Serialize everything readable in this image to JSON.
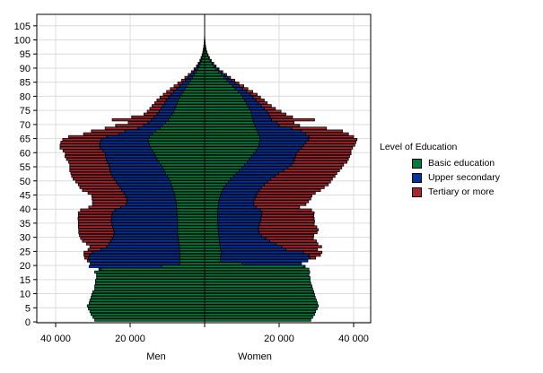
{
  "chart_data": {
    "type": "bar",
    "subtype": "population-pyramid-stacked",
    "title": "",
    "xlabel_left": "Men",
    "xlabel_right": "Women",
    "ylabel": "",
    "x_ticks": [
      "40 000",
      "20 000",
      "",
      "20 000",
      "40 000"
    ],
    "x_tick_values": [
      -40000,
      -20000,
      0,
      20000,
      40000
    ],
    "xlim": [
      -45000,
      45000
    ],
    "y_ticks": [
      0,
      5,
      10,
      15,
      20,
      25,
      30,
      35,
      40,
      45,
      50,
      55,
      60,
      65,
      70,
      75,
      80,
      85,
      90,
      95,
      100,
      105
    ],
    "ylim": [
      0,
      108
    ],
    "grid": true,
    "legend": {
      "title": "Level of Education",
      "position": "right",
      "entries": [
        {
          "name": "Basic education",
          "color": "#007a3d"
        },
        {
          "name": "Upper secondary",
          "color": "#0033a0"
        },
        {
          "name": "Tertiary or more",
          "color": "#a8262e"
        }
      ]
    },
    "ages": [
      0,
      1,
      2,
      3,
      4,
      5,
      6,
      7,
      8,
      9,
      10,
      11,
      12,
      13,
      14,
      15,
      16,
      17,
      18,
      19,
      20,
      21,
      22,
      23,
      24,
      25,
      26,
      27,
      28,
      29,
      30,
      31,
      32,
      33,
      34,
      35,
      36,
      37,
      38,
      39,
      40,
      41,
      42,
      43,
      44,
      45,
      46,
      47,
      48,
      49,
      50,
      51,
      52,
      53,
      54,
      55,
      56,
      57,
      58,
      59,
      60,
      61,
      62,
      63,
      64,
      65,
      66,
      67,
      68,
      69,
      70,
      71,
      72,
      73,
      74,
      75,
      76,
      77,
      78,
      79,
      80,
      81,
      82,
      83,
      84,
      85,
      86,
      87,
      88,
      89,
      90,
      91,
      92,
      93,
      94,
      95,
      96,
      97,
      98,
      99,
      100,
      101,
      102
    ],
    "series": [
      {
        "name": "Men - Basic education",
        "side": "left",
        "values": [
          29500,
          30000,
          30500,
          30800,
          31200,
          31500,
          31000,
          30800,
          30500,
          30300,
          30000,
          29500,
          29500,
          29300,
          29300,
          29000,
          29000,
          29500,
          27800,
          11500,
          6700,
          6700,
          6700,
          6600,
          6700,
          6800,
          6800,
          6900,
          7000,
          7100,
          7200,
          7300,
          7300,
          7300,
          7300,
          7300,
          7400,
          7400,
          7500,
          7500,
          7600,
          7600,
          7700,
          7900,
          8000,
          8200,
          8500,
          8700,
          9000,
          9200,
          9600,
          10000,
          10500,
          10900,
          11300,
          11700,
          12300,
          12800,
          13200,
          13500,
          14000,
          14500,
          14800,
          15000,
          15200,
          14800,
          14000,
          13200,
          12000,
          11300,
          10500,
          9800,
          9300,
          8700,
          8300,
          8000,
          7700,
          7400,
          7100,
          6700,
          6300,
          5800,
          5300,
          4800,
          4300,
          3800,
          3300,
          2800,
          2300,
          1900,
          1500,
          1200,
          900,
          700,
          500,
          350,
          250,
          150,
          100,
          70,
          40,
          20,
          10
        ]
      },
      {
        "name": "Men - Upper secondary",
        "side": "left",
        "values": [
          0,
          0,
          0,
          0,
          0,
          0,
          0,
          0,
          0,
          0,
          0,
          0,
          0,
          0,
          0,
          0,
          0,
          0,
          600,
          19500,
          24000,
          24300,
          24500,
          24300,
          23500,
          21000,
          19500,
          18800,
          18300,
          17700,
          17200,
          17000,
          17200,
          17400,
          17600,
          17800,
          17600,
          17500,
          17300,
          16600,
          15000,
          13500,
          13200,
          13000,
          13200,
          13500,
          13800,
          14000,
          14300,
          14500,
          14700,
          14800,
          14700,
          14500,
          14200,
          14000,
          13800,
          13600,
          13400,
          13200,
          13300,
          13500,
          13400,
          13100,
          12600,
          11500,
          9000,
          8200,
          5900,
          5100,
          4700,
          4500,
          4300,
          4100,
          3900,
          3700,
          3500,
          3300,
          3200,
          3000,
          2700,
          2500,
          2200,
          1900,
          1700,
          1400,
          1200,
          1000,
          800,
          600,
          450,
          350,
          250,
          180,
          120,
          80,
          50,
          30,
          20,
          10,
          5,
          0,
          0
        ]
      },
      {
        "name": "Men - Tertiary or more",
        "side": "left",
        "values": [
          0,
          0,
          0,
          0,
          0,
          0,
          0,
          0,
          0,
          0,
          0,
          0,
          0,
          0,
          0,
          0,
          0,
          0,
          0,
          0,
          0,
          500,
          1000,
          1500,
          2200,
          3500,
          4500,
          6000,
          7500,
          8500,
          9200,
          9500,
          9300,
          9200,
          9000,
          8800,
          9000,
          9000,
          9100,
          9200,
          8500,
          9000,
          9200,
          9300,
          9100,
          9600,
          10500,
          10800,
          10600,
          10900,
          11000,
          10900,
          10700,
          10800,
          10700,
          10500,
          10400,
          10700,
          10900,
          10700,
          10700,
          10800,
          10600,
          10500,
          10300,
          10200,
          9500,
          9000,
          8800,
          7500,
          5300,
          10500,
          6000,
          3500,
          3200,
          3000,
          2900,
          2700,
          2500,
          2300,
          2100,
          1900,
          1700,
          1500,
          1200,
          1000,
          800,
          600,
          450,
          350,
          250,
          180,
          120,
          80,
          50,
          30,
          20,
          10,
          5,
          0,
          0,
          0,
          0
        ]
      },
      {
        "name": "Women - Basic education",
        "side": "right",
        "values": [
          28500,
          29000,
          29500,
          29800,
          30200,
          30500,
          30300,
          30000,
          29700,
          29500,
          29300,
          29000,
          28800,
          28500,
          28300,
          28300,
          28000,
          28200,
          28000,
          26500,
          10000,
          4200,
          4300,
          4400,
          4500,
          4300,
          4200,
          4100,
          4000,
          3900,
          3800,
          3700,
          3700,
          3600,
          3600,
          3500,
          3500,
          3500,
          3500,
          3600,
          3600,
          3700,
          3800,
          4000,
          4200,
          4500,
          4800,
          5200,
          5800,
          6400,
          7000,
          7800,
          8500,
          9300,
          10000,
          10700,
          11400,
          12000,
          12600,
          13200,
          13800,
          14300,
          14600,
          14700,
          14900,
          14800,
          14500,
          14200,
          13800,
          13500,
          13200,
          13000,
          12800,
          12600,
          12400,
          12000,
          11600,
          11200,
          10800,
          10300,
          9800,
          9000,
          8200,
          7500,
          6700,
          6000,
          5200,
          4500,
          3800,
          3100,
          2500,
          2000,
          1500,
          1100,
          800,
          550,
          350,
          200,
          120,
          70,
          40,
          20,
          10
        ]
      },
      {
        "name": "Women - Upper secondary",
        "side": "right",
        "values": [
          0,
          0,
          0,
          0,
          0,
          0,
          0,
          0,
          0,
          0,
          0,
          0,
          0,
          0,
          0,
          0,
          0,
          0,
          0,
          500,
          16000,
          23500,
          24000,
          23700,
          22000,
          17500,
          16500,
          15000,
          13500,
          12500,
          11500,
          11000,
          10800,
          10900,
          11100,
          11500,
          11600,
          11800,
          11900,
          11400,
          10200,
          9500,
          9300,
          9500,
          9600,
          9700,
          9900,
          10000,
          10200,
          10500,
          10700,
          11000,
          11400,
          11900,
          12400,
          12600,
          12400,
          12100,
          11800,
          11400,
          11500,
          11700,
          12000,
          12500,
          13000,
          13200,
          12600,
          11800,
          9600,
          6500,
          6200,
          5000,
          4800,
          4600,
          4300,
          4000,
          3600,
          3300,
          3000,
          2700,
          2500,
          2300,
          2000,
          1800,
          1500,
          1300,
          1100,
          900,
          700,
          500,
          380,
          280,
          200,
          140,
          90,
          60,
          35,
          20,
          10,
          5,
          0,
          0,
          0
        ]
      },
      {
        "name": "Women - Tertiary or more",
        "side": "right",
        "values": [
          0,
          0,
          0,
          0,
          0,
          0,
          0,
          0,
          0,
          0,
          0,
          0,
          0,
          0,
          0,
          0,
          0,
          0,
          0,
          0,
          0,
          0,
          1500,
          3000,
          5000,
          8500,
          10700,
          11300,
          12500,
          12800,
          14000,
          15500,
          16000,
          15600,
          14700,
          14500,
          14300,
          14000,
          14000,
          13700,
          11700,
          14000,
          14800,
          15000,
          15000,
          15500,
          16400,
          16900,
          17200,
          16900,
          16600,
          16200,
          15600,
          15000,
          14400,
          14000,
          14400,
          14500,
          14500,
          14700,
          14000,
          13700,
          13700,
          13400,
          13000,
          12000,
          11500,
          11000,
          9300,
          5500,
          4600,
          11500,
          6000,
          4600,
          3800,
          3000,
          2700,
          2300,
          2200,
          2000,
          1800,
          1600,
          1400,
          1200,
          1000,
          800,
          650,
          500,
          380,
          280,
          200,
          140,
          90,
          60,
          35,
          20,
          10,
          5,
          0,
          0,
          0,
          0,
          0
        ]
      }
    ]
  }
}
